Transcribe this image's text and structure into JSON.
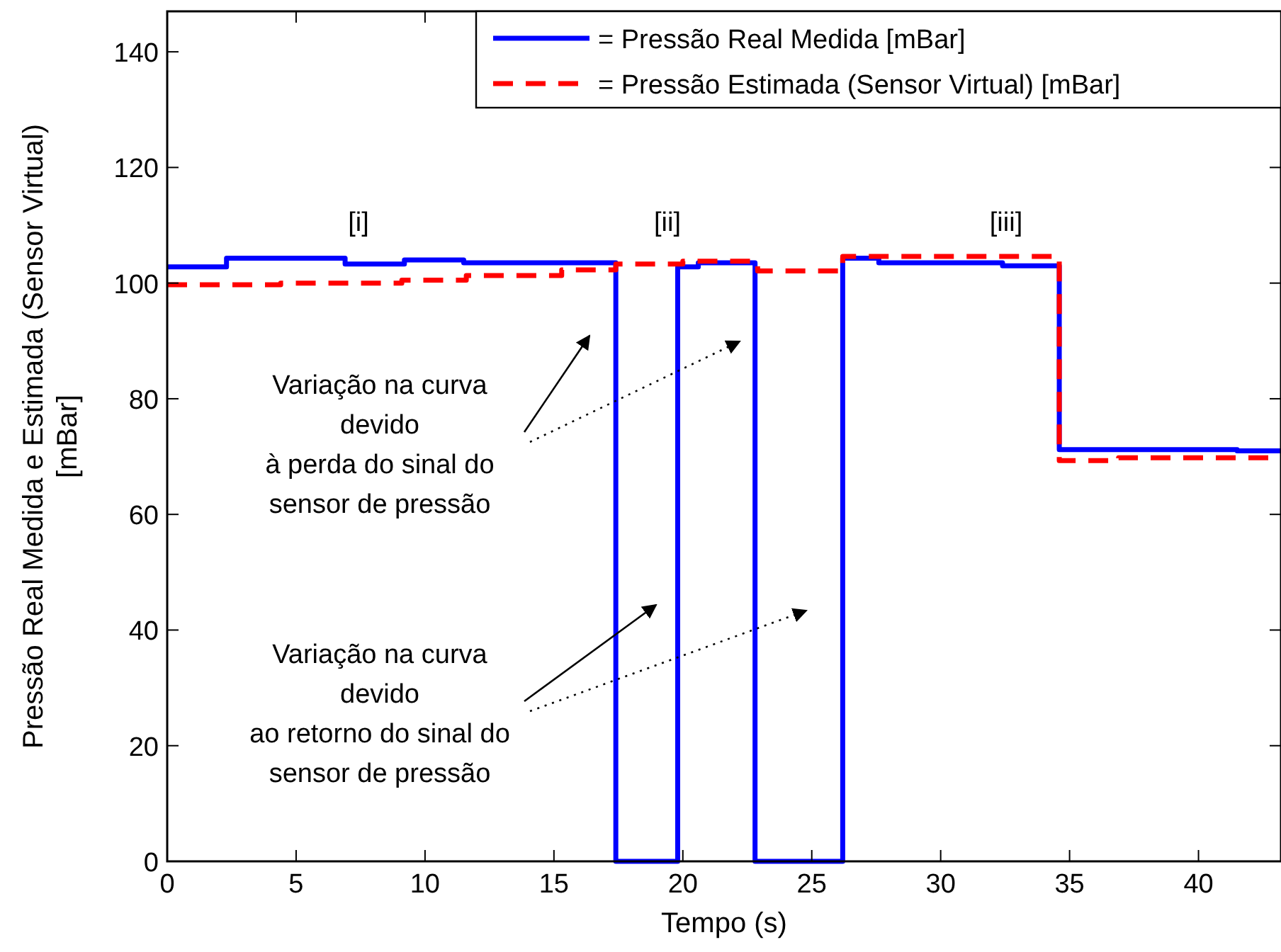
{
  "chart_data": {
    "type": "step",
    "xlabel": "Tempo (s)",
    "ylabel": "Pressão Real Medida e Estimada (Sensor Virtual) [mBar]",
    "xlim": [
      0,
      43.2
    ],
    "ylim": [
      0,
      147
    ],
    "xticks": [
      0,
      5,
      10,
      15,
      20,
      25,
      30,
      35,
      40
    ],
    "yticks": [
      0,
      20,
      40,
      60,
      80,
      100,
      120,
      140
    ],
    "grid": false,
    "legend": "top right",
    "series": [
      {
        "name": "= Pressão Real Medida [mBar]",
        "color": "#0000ff",
        "line_style": "solid",
        "x": [
          0,
          2.3,
          6.9,
          9.2,
          11.5,
          17.4,
          19.8,
          20.6,
          22.8,
          26.2,
          27.6,
          32.4,
          34.6,
          41.5,
          43.2
        ],
        "values": [
          102.8,
          104.3,
          103.3,
          104,
          103.5,
          0,
          102.8,
          103.5,
          0,
          104.3,
          103.5,
          103,
          71.2,
          71,
          71
        ]
      },
      {
        "name": "= Pressão Estimada (Sensor Virtual) [mBar]",
        "color": "#ff0000",
        "line_style": "dashed",
        "x": [
          0,
          4.4,
          9.1,
          11.6,
          15.3,
          17.4,
          20,
          22.9,
          26.2,
          34.6,
          36.9,
          43.2
        ],
        "values": [
          99.7,
          100,
          100.5,
          101.3,
          102.3,
          103.3,
          103.8,
          102.1,
          104.6,
          69.3,
          69.8,
          69.8
        ]
      }
    ],
    "annotations": [
      "[i]",
      "[ii]",
      "[iii]",
      "Variação na curva\ndevido\nà perda do sinal do\nsensor de pressão",
      "Variação na curva\ndevido\nao retorno do sinal do\nsensor de pressão"
    ]
  }
}
